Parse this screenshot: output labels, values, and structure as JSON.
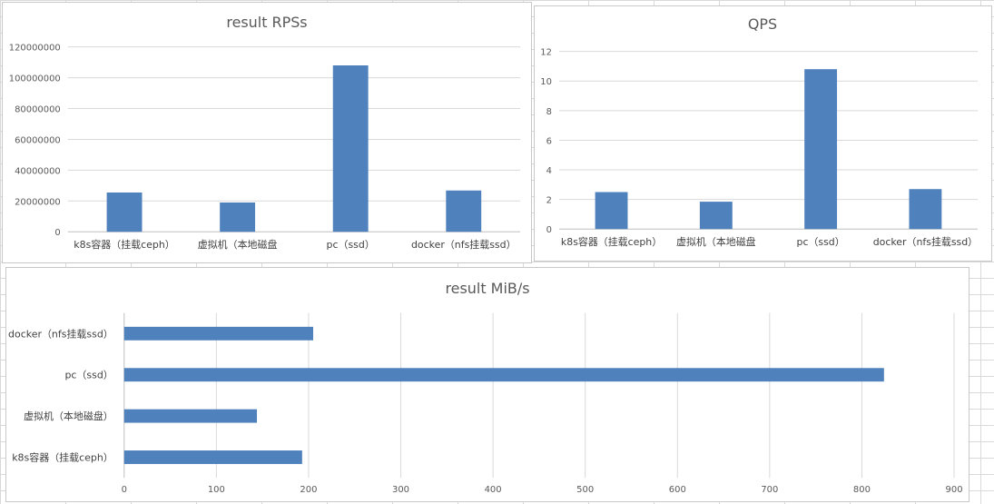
{
  "sheet": {
    "description_colors": {
      "bar": "#4f81bd",
      "grid": "#d9d9d9",
      "text": "#595959"
    }
  },
  "chart_data": [
    {
      "id": "rps",
      "type": "bar",
      "title": "result RPSs",
      "categories": [
        "k8s容器（挂载ceph）",
        "虚拟机（本地磁盘",
        "pc（ssd）",
        "docker（nfs挂载ssd）"
      ],
      "values": [
        25500000,
        19000000,
        108000000,
        26800000
      ],
      "ylim": [
        0,
        120000000
      ],
      "yticks": [
        0,
        20000000,
        40000000,
        60000000,
        80000000,
        100000000,
        120000000
      ],
      "grid": true,
      "legend": "none"
    },
    {
      "id": "qps",
      "type": "bar",
      "title": "QPS",
      "categories": [
        "k8s容器（挂载ceph）",
        "虚拟机（本地磁盘",
        "pc（ssd）",
        "docker（nfs挂载ssd）"
      ],
      "values": [
        2.5,
        1.85,
        10.8,
        2.7
      ],
      "ylim": [
        0,
        12
      ],
      "yticks": [
        0,
        2,
        4,
        6,
        8,
        10,
        12
      ],
      "grid": true,
      "legend": "none"
    },
    {
      "id": "mib",
      "type": "bar",
      "orientation": "horizontal",
      "title": "result MiB/s",
      "categories": [
        "k8s容器（挂载ceph）",
        "虚拟机（本地磁盘）",
        "pc（ssd）",
        "docker（nfs挂载ssd）"
      ],
      "values": [
        193,
        144,
        824,
        205
      ],
      "xlim": [
        0,
        900
      ],
      "xticks": [
        0,
        100,
        200,
        300,
        400,
        500,
        600,
        700,
        800,
        900
      ],
      "grid": true,
      "legend": "none"
    }
  ]
}
